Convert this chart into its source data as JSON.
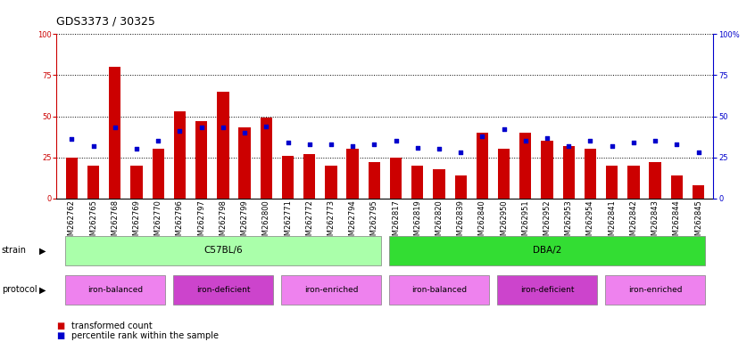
{
  "title": "GDS3373 / 30325",
  "samples": [
    "GSM262762",
    "GSM262765",
    "GSM262768",
    "GSM262769",
    "GSM262770",
    "GSM262796",
    "GSM262797",
    "GSM262798",
    "GSM262799",
    "GSM262800",
    "GSM262771",
    "GSM262772",
    "GSM262773",
    "GSM262794",
    "GSM262795",
    "GSM262817",
    "GSM262819",
    "GSM262820",
    "GSM262839",
    "GSM262840",
    "GSM262950",
    "GSM262951",
    "GSM262952",
    "GSM262953",
    "GSM262954",
    "GSM262841",
    "GSM262842",
    "GSM262843",
    "GSM262844",
    "GSM262845"
  ],
  "red_values": [
    25,
    20,
    80,
    20,
    30,
    53,
    47,
    65,
    43,
    49,
    26,
    27,
    20,
    30,
    22,
    25,
    20,
    18,
    14,
    40,
    30,
    40,
    35,
    32,
    30,
    20,
    20,
    22,
    14,
    8
  ],
  "blue_values": [
    36,
    32,
    43,
    30,
    35,
    41,
    43,
    43,
    40,
    44,
    34,
    33,
    33,
    32,
    33,
    35,
    31,
    30,
    28,
    38,
    42,
    35,
    37,
    32,
    35,
    32,
    34,
    35,
    33,
    28
  ],
  "strain_groups": [
    {
      "label": "C57BL/6",
      "start": 0,
      "end": 14,
      "color": "#AAFFAA"
    },
    {
      "label": "DBA/2",
      "start": 15,
      "end": 29,
      "color": "#33DD33"
    }
  ],
  "protocol_groups": [
    {
      "label": "iron-balanced",
      "start": 0,
      "end": 4,
      "color": "#EE82EE"
    },
    {
      "label": "iron-deficient",
      "start": 5,
      "end": 9,
      "color": "#CC44CC"
    },
    {
      "label": "iron-enriched",
      "start": 10,
      "end": 14,
      "color": "#EE82EE"
    },
    {
      "label": "iron-balanced",
      "start": 15,
      "end": 19,
      "color": "#EE82EE"
    },
    {
      "label": "iron-deficient",
      "start": 20,
      "end": 24,
      "color": "#CC44CC"
    },
    {
      "label": "iron-enriched",
      "start": 25,
      "end": 29,
      "color": "#EE82EE"
    }
  ],
  "bar_color": "#CC0000",
  "dot_color": "#0000CC",
  "ylim": [
    0,
    100
  ],
  "yticks": [
    0,
    25,
    50,
    75,
    100
  ],
  "background_color": "#FFFFFF",
  "title_fontsize": 9,
  "tick_fontsize": 6,
  "label_fontsize": 7
}
